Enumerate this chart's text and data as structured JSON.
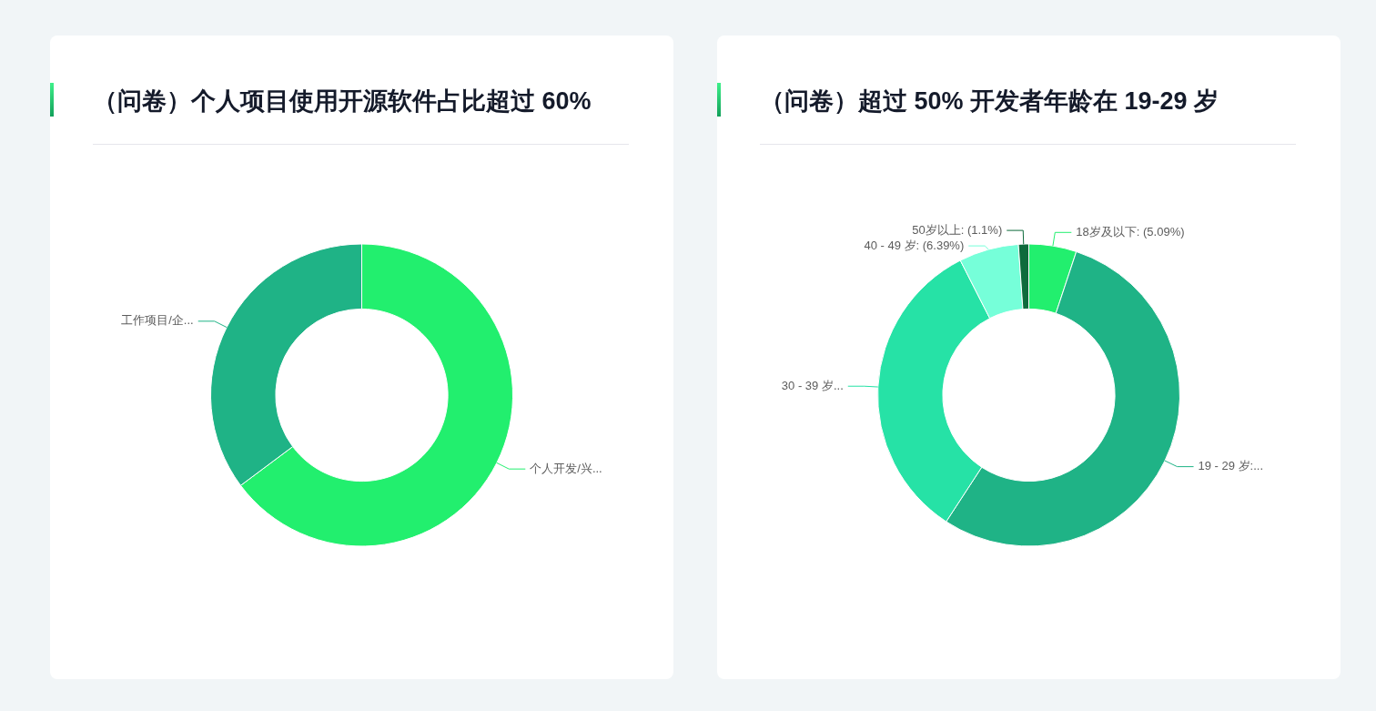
{
  "chart_data": [
    {
      "type": "donut",
      "title": "（问卷）个人项目使用开源软件占比超过 60%",
      "categories": [
        "个人开发/兴...",
        "工作项目/企..."
      ],
      "values": [
        64.8,
        35.2
      ],
      "colors": [
        "#22ef6e",
        "#1fb386"
      ]
    },
    {
      "type": "donut",
      "title": "（问卷）超过 50% 开发者年龄在 19-29 岁",
      "categories": [
        "18岁及以下: (5.09%)",
        "19 - 29 岁:...",
        "30 - 39 岁...",
        "40 - 49 岁: (6.39%)",
        "50岁以上: (1.1%)"
      ],
      "values": [
        5.09,
        54.12,
        33.3,
        6.39,
        1.1
      ],
      "colors": [
        "#22ef6e",
        "#1fb386",
        "#26e2a6",
        "#76ffd9",
        "#0e6b3c"
      ]
    }
  ]
}
